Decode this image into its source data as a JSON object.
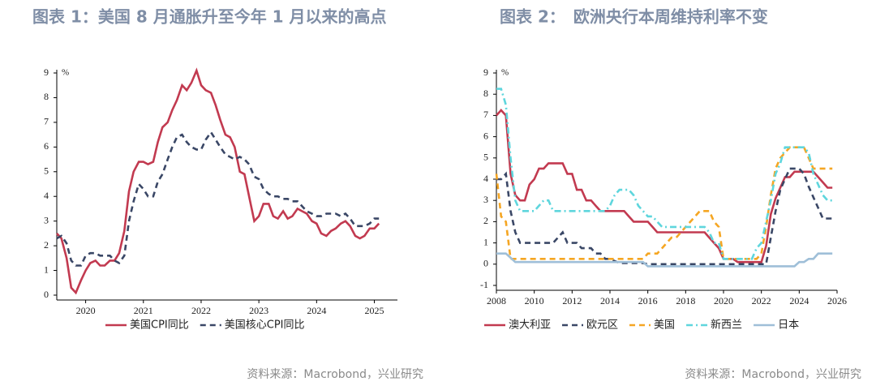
{
  "chart_data": [
    {
      "type": "line",
      "title": "图表 1：美国 8 月通胀升至今年 1 月以来的高点",
      "source": "资料来源：Macrobond，兴业研究",
      "y_unit": "%",
      "x": [
        2020.0,
        2020.08,
        2020.17,
        2020.25,
        2020.33,
        2020.42,
        2020.5,
        2020.58,
        2020.67,
        2020.75,
        2020.83,
        2020.92,
        2021.0,
        2021.08,
        2021.17,
        2021.25,
        2021.33,
        2021.42,
        2021.5,
        2021.58,
        2021.67,
        2021.75,
        2021.83,
        2021.92,
        2022.0,
        2022.08,
        2022.17,
        2022.25,
        2022.33,
        2022.42,
        2022.5,
        2022.58,
        2022.67,
        2022.75,
        2022.83,
        2022.92,
        2023.0,
        2023.08,
        2023.17,
        2023.25,
        2023.33,
        2023.42,
        2023.5,
        2023.58,
        2023.67,
        2023.75,
        2023.83,
        2023.92,
        2024.0,
        2024.08,
        2024.17,
        2024.25,
        2024.33,
        2024.42,
        2024.5,
        2024.58,
        2024.67,
        2024.75,
        2024.83,
        2024.92,
        2025.0,
        2025.08,
        2025.17,
        2025.25,
        2025.33,
        2025.42,
        2025.5,
        2025.58
      ],
      "series": [
        {
          "name": "美国CPI同比",
          "color": "#c23a50",
          "line_style": "solid",
          "values": [
            2.5,
            2.3,
            1.5,
            0.3,
            0.1,
            0.6,
            1.0,
            1.3,
            1.4,
            1.2,
            1.2,
            1.4,
            1.4,
            1.7,
            2.6,
            4.2,
            5.0,
            5.4,
            5.4,
            5.3,
            5.4,
            6.2,
            6.8,
            7.0,
            7.5,
            7.9,
            8.5,
            8.3,
            8.6,
            9.1,
            8.5,
            8.3,
            8.2,
            7.7,
            7.1,
            6.5,
            6.4,
            6.0,
            5.0,
            4.9,
            4.0,
            3.0,
            3.2,
            3.7,
            3.7,
            3.2,
            3.1,
            3.4,
            3.1,
            3.2,
            3.5,
            3.4,
            3.3,
            3.0,
            2.9,
            2.5,
            2.4,
            2.6,
            2.7,
            2.9,
            3.0,
            2.8,
            2.4,
            2.3,
            2.4,
            2.7,
            2.7,
            2.9
          ]
        },
        {
          "name": "美国核心CPI同比",
          "color": "#3a4766",
          "line_style": "dashed",
          "values": [
            2.3,
            2.4,
            2.1,
            1.4,
            1.2,
            1.2,
            1.6,
            1.7,
            1.7,
            1.6,
            1.6,
            1.6,
            1.4,
            1.3,
            1.6,
            3.0,
            3.8,
            4.5,
            4.3,
            4.0,
            4.0,
            4.6,
            4.9,
            5.5,
            6.0,
            6.4,
            6.5,
            6.2,
            6.0,
            5.9,
            5.9,
            6.3,
            6.6,
            6.3,
            6.0,
            5.7,
            5.6,
            5.5,
            5.6,
            5.5,
            5.3,
            4.8,
            4.7,
            4.3,
            4.1,
            4.0,
            4.0,
            3.9,
            3.9,
            3.8,
            3.8,
            3.6,
            3.4,
            3.3,
            3.2,
            3.2,
            3.3,
            3.3,
            3.3,
            3.2,
            3.3,
            3.1,
            2.8,
            2.8,
            2.8,
            2.9,
            3.1,
            3.1
          ]
        }
      ],
      "xlim": [
        2020,
        2025.9
      ],
      "xticks": [
        {
          "value": 2020.5,
          "label": "2020"
        },
        {
          "value": 2021.5,
          "label": "2021"
        },
        {
          "value": 2022.5,
          "label": "2022"
        },
        {
          "value": 2023.5,
          "label": "2023"
        },
        {
          "value": 2024.5,
          "label": "2024"
        },
        {
          "value": 2025.5,
          "label": "2025"
        }
      ],
      "ylim": [
        0,
        9
      ],
      "yticks": [
        0,
        1,
        2,
        3,
        4,
        5,
        6,
        7,
        8,
        9
      ],
      "grid": false
    },
    {
      "type": "line",
      "title": "图表 2：　欧洲央行本周维持利率不变",
      "source": "资料来源：Macrobond，兴业研究",
      "y_unit": "%",
      "x": [
        2008,
        2008.25,
        2008.5,
        2008.75,
        2009,
        2009.25,
        2009.5,
        2009.75,
        2010,
        2010.25,
        2010.5,
        2010.75,
        2011,
        2011.25,
        2011.5,
        2011.75,
        2012,
        2012.25,
        2012.5,
        2012.75,
        2013,
        2013.25,
        2013.5,
        2013.75,
        2014,
        2014.25,
        2014.5,
        2014.75,
        2015,
        2015.25,
        2015.5,
        2015.75,
        2016,
        2016.25,
        2016.5,
        2016.75,
        2017,
        2017.25,
        2017.5,
        2017.75,
        2018,
        2018.25,
        2018.5,
        2018.75,
        2019,
        2019.25,
        2019.5,
        2019.75,
        2020,
        2020.25,
        2020.5,
        2020.75,
        2021,
        2021.25,
        2021.5,
        2021.75,
        2022,
        2022.25,
        2022.5,
        2022.75,
        2023,
        2023.25,
        2023.5,
        2023.75,
        2024,
        2024.25,
        2024.5,
        2024.75,
        2025,
        2025.25,
        2025.5,
        2025.75
      ],
      "series": [
        {
          "name": "澳大利亚",
          "color": "#c23a50",
          "line_style": "solid",
          "values": [
            7.0,
            7.25,
            7.0,
            4.25,
            3.25,
            3.0,
            3.0,
            3.75,
            4.0,
            4.5,
            4.5,
            4.75,
            4.75,
            4.75,
            4.75,
            4.25,
            4.25,
            3.5,
            3.5,
            3.0,
            3.0,
            2.75,
            2.5,
            2.5,
            2.5,
            2.5,
            2.5,
            2.5,
            2.25,
            2.0,
            2.0,
            2.0,
            2.0,
            1.75,
            1.5,
            1.5,
            1.5,
            1.5,
            1.5,
            1.5,
            1.5,
            1.5,
            1.5,
            1.5,
            1.5,
            1.25,
            1.0,
            0.75,
            0.25,
            0.25,
            0.25,
            0.1,
            0.1,
            0.1,
            0.1,
            0.1,
            0.1,
            0.85,
            2.35,
            3.1,
            3.6,
            4.1,
            4.1,
            4.35,
            4.35,
            4.35,
            4.35,
            4.35,
            4.1,
            3.85,
            3.6,
            3.6
          ]
        },
        {
          "name": "欧元区",
          "color": "#3a4766",
          "line_style": "dashed",
          "values": [
            4.0,
            4.0,
            4.25,
            2.5,
            1.5,
            1.0,
            1.0,
            1.0,
            1.0,
            1.0,
            1.0,
            1.0,
            1.0,
            1.25,
            1.5,
            1.0,
            1.0,
            1.0,
            0.75,
            0.75,
            0.75,
            0.5,
            0.5,
            0.25,
            0.25,
            0.15,
            0.05,
            0.05,
            0.05,
            0.05,
            0.05,
            0.05,
            0,
            0,
            0,
            0,
            0,
            0,
            0,
            0,
            0,
            0,
            0,
            0,
            0,
            0,
            0,
            0,
            0,
            0,
            0,
            0,
            0,
            0,
            0,
            0,
            0,
            0,
            1.25,
            2.5,
            3.5,
            4.0,
            4.5,
            4.5,
            4.5,
            4.25,
            3.65,
            3.15,
            2.65,
            2.15,
            2.15,
            2.15
          ]
        },
        {
          "name": "美国",
          "color": "#f5a623",
          "line_style": "dashed",
          "values": [
            4.25,
            2.25,
            2.0,
            0.25,
            0.25,
            0.25,
            0.25,
            0.25,
            0.25,
            0.25,
            0.25,
            0.25,
            0.25,
            0.25,
            0.25,
            0.25,
            0.25,
            0.25,
            0.25,
            0.25,
            0.25,
            0.25,
            0.25,
            0.25,
            0.25,
            0.25,
            0.25,
            0.25,
            0.25,
            0.25,
            0.25,
            0.25,
            0.5,
            0.5,
            0.5,
            0.75,
            1.0,
            1.25,
            1.25,
            1.5,
            1.75,
            2.0,
            2.25,
            2.5,
            2.5,
            2.5,
            2.0,
            1.75,
            0.25,
            0.25,
            0.25,
            0.25,
            0.25,
            0.25,
            0.25,
            0.25,
            0.5,
            1.75,
            3.25,
            4.5,
            5.0,
            5.25,
            5.5,
            5.5,
            5.5,
            5.5,
            5.0,
            4.5,
            4.5,
            4.5,
            4.5,
            4.5
          ]
        },
        {
          "name": "新西兰",
          "color": "#5fd6dd",
          "line_style": "dashdot",
          "values": [
            8.25,
            8.25,
            7.5,
            5.0,
            3.0,
            2.5,
            2.5,
            2.5,
            2.5,
            2.75,
            3.0,
            3.0,
            2.5,
            2.5,
            2.5,
            2.5,
            2.5,
            2.5,
            2.5,
            2.5,
            2.5,
            2.5,
            2.5,
            2.5,
            2.75,
            3.25,
            3.5,
            3.5,
            3.5,
            3.25,
            2.75,
            2.5,
            2.25,
            2.25,
            2.0,
            1.75,
            1.75,
            1.75,
            1.75,
            1.75,
            1.75,
            1.75,
            1.75,
            1.75,
            1.75,
            1.5,
            1.0,
            1.0,
            0.25,
            0.25,
            0.25,
            0.25,
            0.25,
            0.25,
            0.25,
            0.75,
            1.0,
            2.0,
            3.0,
            4.25,
            4.75,
            5.5,
            5.5,
            5.5,
            5.5,
            5.5,
            5.25,
            4.25,
            3.75,
            3.25,
            3.0,
            3.0
          ]
        },
        {
          "name": "日本",
          "color": "#9fbfd8",
          "line_style": "solid",
          "values": [
            0.5,
            0.5,
            0.5,
            0.3,
            0.1,
            0.1,
            0.1,
            0.1,
            0.1,
            0.1,
            0.1,
            0.1,
            0.1,
            0.1,
            0.1,
            0.1,
            0.1,
            0.1,
            0.1,
            0.1,
            0.1,
            0.1,
            0.1,
            0.1,
            0.1,
            0.1,
            0.1,
            0.1,
            0.1,
            0.1,
            0.1,
            0.1,
            -0.1,
            -0.1,
            -0.1,
            -0.1,
            -0.1,
            -0.1,
            -0.1,
            -0.1,
            -0.1,
            -0.1,
            -0.1,
            -0.1,
            -0.1,
            -0.1,
            -0.1,
            -0.1,
            -0.1,
            -0.1,
            -0.1,
            -0.1,
            -0.1,
            -0.1,
            -0.1,
            -0.1,
            -0.1,
            -0.1,
            -0.1,
            -0.1,
            -0.1,
            -0.1,
            -0.1,
            -0.1,
            0.1,
            0.1,
            0.25,
            0.25,
            0.5,
            0.5,
            0.5,
            0.5
          ]
        }
      ],
      "xlim": [
        2008,
        2026
      ],
      "xticks": [
        2008,
        2010,
        2012,
        2014,
        2016,
        2018,
        2020,
        2022,
        2024,
        2026
      ],
      "ylim": [
        -1,
        9
      ],
      "yticks": [
        -1,
        0,
        1,
        2,
        3,
        4,
        5,
        6,
        7,
        8,
        9
      ],
      "grid": false
    }
  ]
}
